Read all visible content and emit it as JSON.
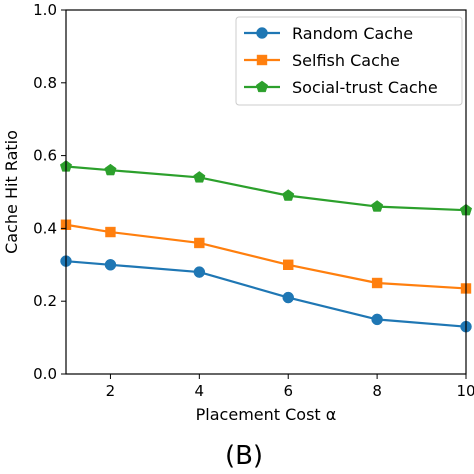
{
  "panel_label": "(B)",
  "chart_data": {
    "type": "line",
    "xlabel": "Placement Cost α",
    "ylabel": "Cache Hit Ratio",
    "xlim": [
      1,
      10
    ],
    "ylim": [
      0.0,
      1.0
    ],
    "xticks": [
      2,
      4,
      6,
      8,
      10
    ],
    "xtick_labels": [
      "2",
      "4",
      "6",
      "8",
      "10"
    ],
    "yticks": [
      0.0,
      0.2,
      0.4,
      0.6,
      0.8,
      1.0
    ],
    "ytick_labels": [
      "0.0",
      "0.2",
      "0.4",
      "0.6",
      "0.8",
      "1.0"
    ],
    "grid": false,
    "legend_position": "top-right",
    "x": [
      1,
      2,
      4,
      6,
      8,
      10
    ],
    "series": [
      {
        "name": "Random Cache",
        "color": "#1f77b4",
        "marker": "circle",
        "values": [
          0.31,
          0.3,
          0.28,
          0.21,
          0.15,
          0.13
        ]
      },
      {
        "name": "Selfish Cache",
        "color": "#ff7f0e",
        "marker": "square",
        "values": [
          0.41,
          0.39,
          0.36,
          0.3,
          0.25,
          0.235
        ]
      },
      {
        "name": "Social-trust Cache",
        "color": "#2ca02c",
        "marker": "pentagon",
        "values": [
          0.57,
          0.56,
          0.54,
          0.49,
          0.46,
          0.45
        ]
      }
    ]
  }
}
